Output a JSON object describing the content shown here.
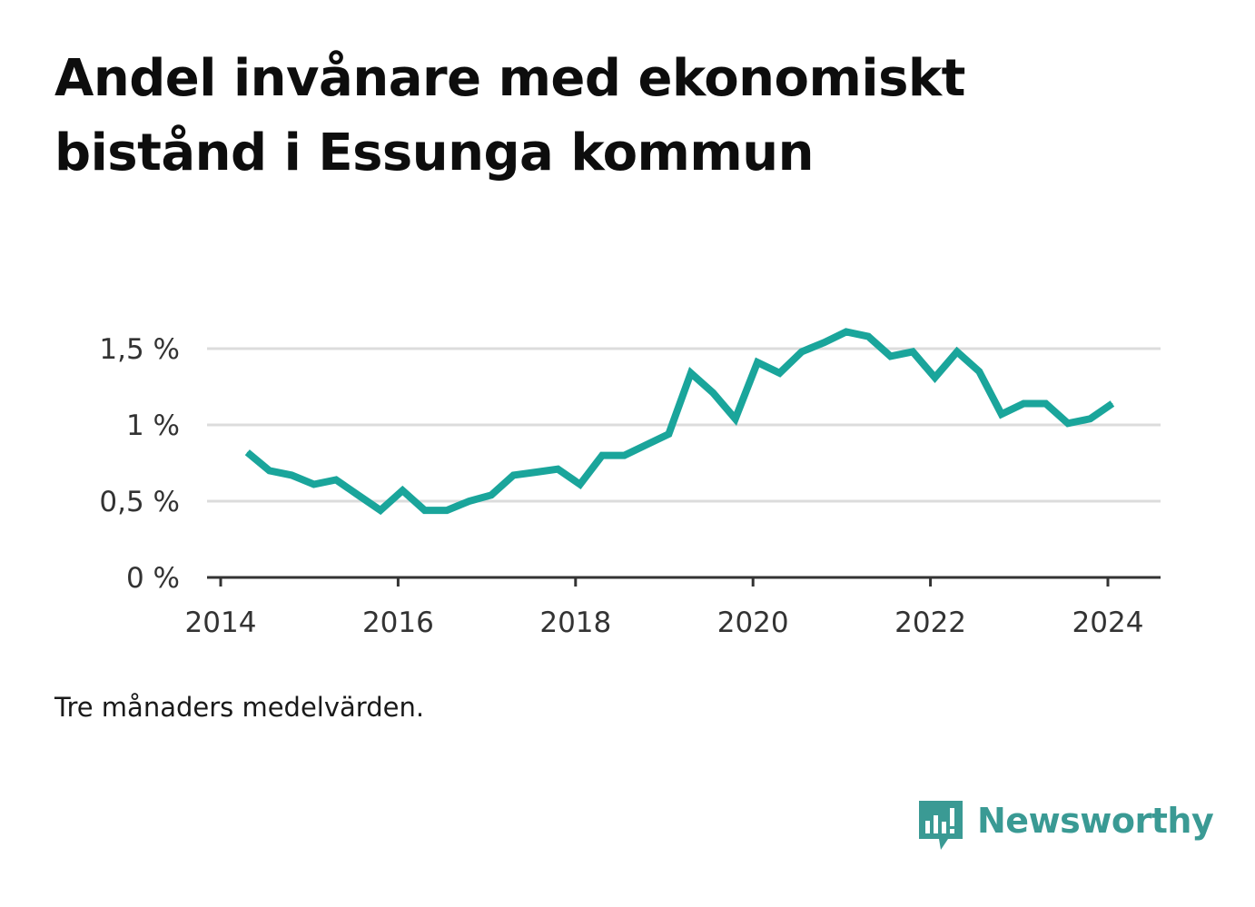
{
  "title": "Andel invånare med ekonomiskt bistånd i Essunga kommun",
  "note": "Tre månaders medelvärden.",
  "brand": {
    "name": "Newsworthy",
    "logo_icon": "bar-chart-speech-bubble-icon",
    "color": "#3a9a94"
  },
  "chart_data": {
    "type": "line",
    "title": "Andel invånare med ekonomiskt bistånd i Essunga kommun",
    "xlabel": "",
    "ylabel": "",
    "xlim": [
      2014,
      2024.6
    ],
    "ylim": [
      0,
      1.6
    ],
    "x_ticks": [
      2014,
      2016,
      2018,
      2020,
      2022,
      2024
    ],
    "x_tick_labels": [
      "2014",
      "2016",
      "2018",
      "2020",
      "2022",
      "2024"
    ],
    "y_ticks": [
      0,
      0.5,
      1,
      1.5
    ],
    "y_tick_labels": [
      "0 %",
      "0,5 %",
      "1 %",
      "1,5 %"
    ],
    "grid": "horizontal",
    "legend": "none",
    "line_color": "#1aa59b",
    "series": [
      {
        "x": [
          2014.3,
          2014.55,
          2014.8,
          2015.05,
          2015.3,
          2015.55,
          2015.8,
          2016.05,
          2016.3,
          2016.55,
          2016.8,
          2017.05,
          2017.3,
          2017.55,
          2017.8,
          2018.05,
          2018.3,
          2018.55,
          2018.8,
          2019.05,
          2019.3,
          2019.55,
          2019.8,
          2020.05,
          2020.3,
          2020.55,
          2020.8,
          2021.05,
          2021.3,
          2021.55,
          2021.8,
          2022.05,
          2022.3,
          2022.55,
          2022.8,
          2023.05,
          2023.3,
          2023.55,
          2023.8,
          2024.05
        ],
        "values": [
          0.82,
          0.7,
          0.67,
          0.61,
          0.64,
          0.54,
          0.44,
          0.57,
          0.44,
          0.44,
          0.5,
          0.54,
          0.67,
          0.69,
          0.71,
          0.61,
          0.8,
          0.8,
          0.87,
          0.94,
          1.34,
          1.21,
          1.04,
          1.41,
          1.34,
          1.48,
          1.54,
          1.61,
          1.58,
          1.45,
          1.48,
          1.31,
          1.48,
          1.35,
          1.07,
          1.14,
          1.14,
          1.01,
          1.04,
          1.14
        ]
      }
    ]
  }
}
